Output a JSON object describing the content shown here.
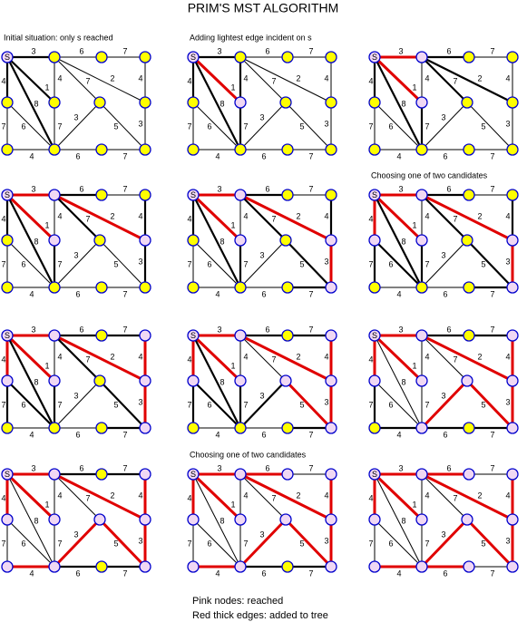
{
  "title": "PRIM'S MST ALGORITHM",
  "source_label": "S",
  "edges": [
    {
      "weight": 3
    },
    {
      "weight": 4
    },
    {
      "weight": 1
    },
    {
      "weight": 8
    },
    {
      "weight": 7
    },
    {
      "weight": 6
    },
    {
      "weight": 4
    },
    {
      "weight": 7
    },
    {
      "weight": 4
    },
    {
      "weight": 6
    },
    {
      "weight": 7
    },
    {
      "weight": 6
    },
    {
      "weight": 7
    },
    {
      "weight": 4
    },
    {
      "weight": 2
    },
    {
      "weight": 7
    },
    {
      "weight": 3
    },
    {
      "weight": 5
    },
    {
      "weight": 3
    }
  ],
  "panels": [
    {
      "caption": "Initial situation: only s reached",
      "tree": []
    },
    {
      "caption": "Adding lightest edge incident on s",
      "tree": [
        2
      ]
    },
    {
      "tree": [
        2,
        0
      ]
    },
    {
      "tree": [
        2,
        0,
        14
      ]
    },
    {
      "tree": [
        2,
        0,
        14,
        18
      ]
    },
    {
      "caption": "Choosing one of two candidates",
      "tree": [
        2,
        0,
        14,
        18,
        1
      ]
    },
    {
      "tree": [
        2,
        0,
        14,
        18,
        1,
        13
      ]
    },
    {
      "tree": [
        2,
        0,
        14,
        18,
        1,
        13,
        17
      ]
    },
    {
      "tree": [
        2,
        0,
        14,
        18,
        1,
        13,
        17,
        16
      ]
    },
    {
      "tree": [
        2,
        0,
        14,
        18,
        1,
        13,
        17,
        16,
        8
      ]
    },
    {
      "caption": "Choosing one of two candidates",
      "tree": [
        2,
        0,
        14,
        18,
        1,
        13,
        17,
        16,
        8,
        11
      ]
    },
    {
      "tree": [
        2,
        0,
        14,
        18,
        1,
        13,
        17,
        16,
        8,
        11,
        9
      ]
    }
  ],
  "legend": [
    "Pink nodes: reached",
    "Red thick edges: added to tree"
  ]
}
